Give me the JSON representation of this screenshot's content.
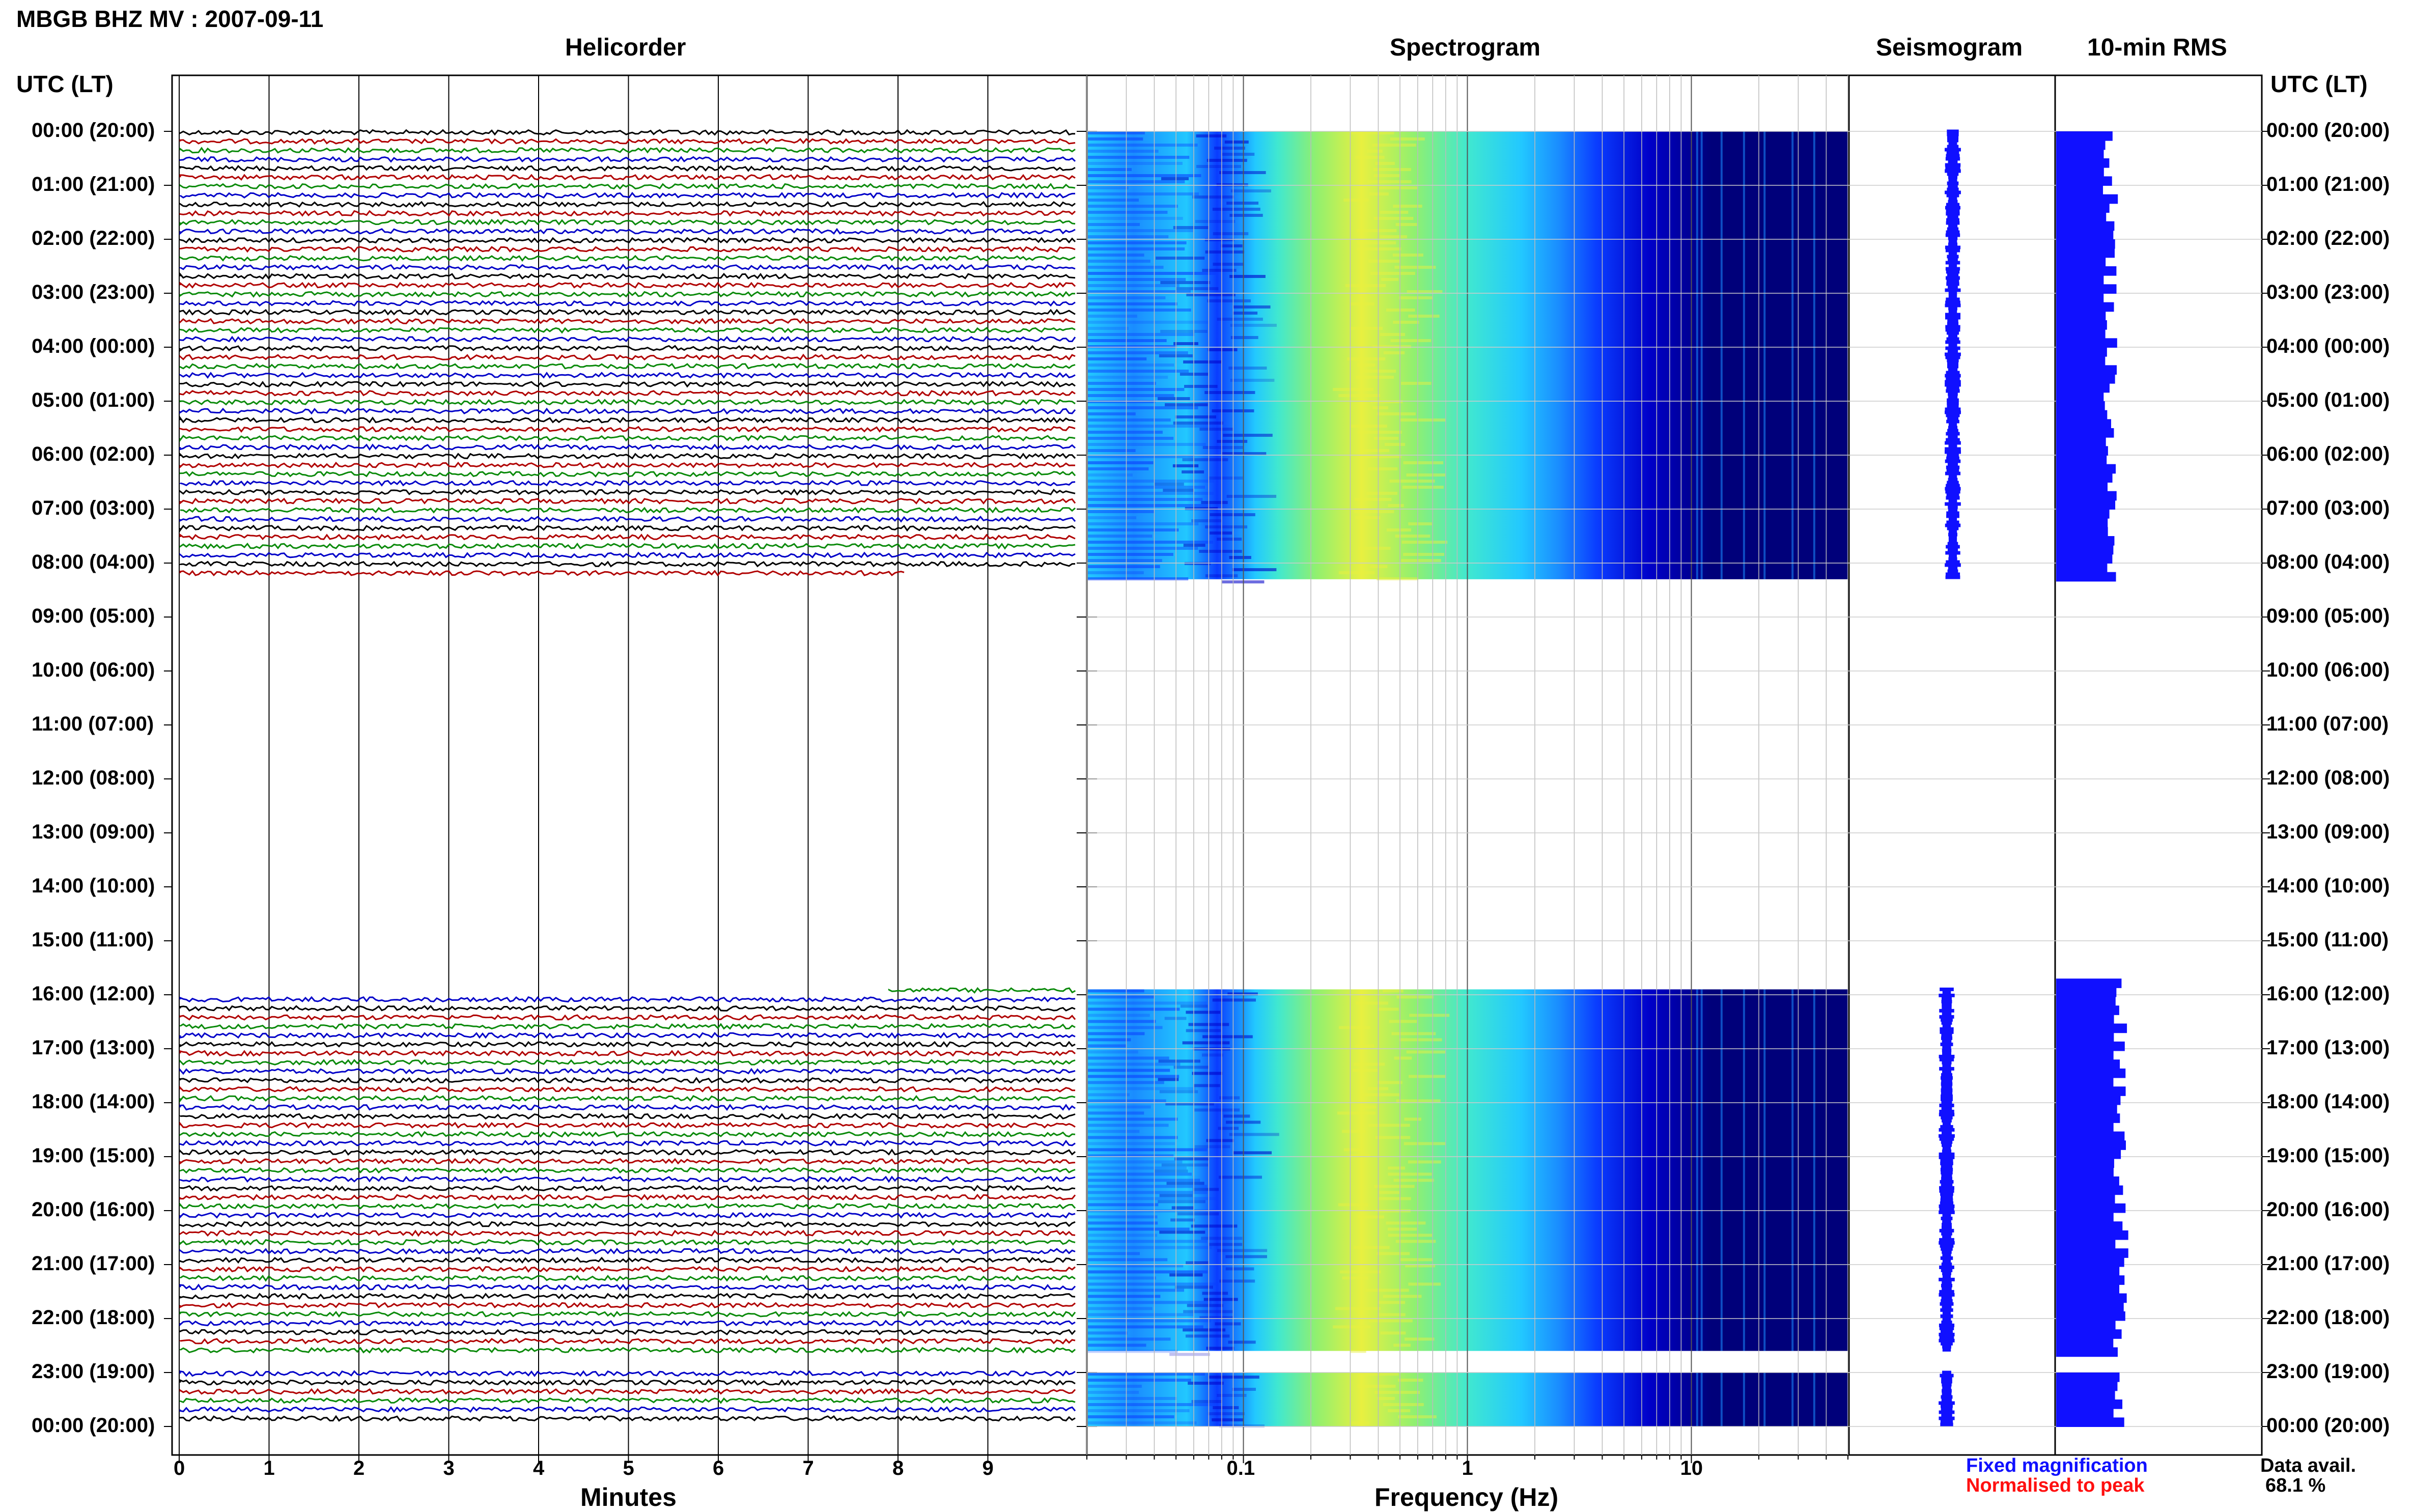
{
  "header": {
    "title": "MBGB BHZ MV : 2007-09-11",
    "utc_label_left": "UTC (LT)",
    "utc_label_right": "UTC (LT)"
  },
  "panels": {
    "helicorder": "Helicorder",
    "spectrogram": "Spectrogram",
    "seismogram": "Seismogram",
    "rms": "10-min RMS"
  },
  "axes": {
    "minutes_label": "Minutes",
    "minutes_ticks": [
      "0",
      "1",
      "2",
      "3",
      "4",
      "5",
      "6",
      "7",
      "8",
      "9"
    ],
    "frequency_label": "Frequency (Hz)",
    "frequency_ticks": [
      "0.1",
      "1",
      "10"
    ]
  },
  "time_labels": [
    "00:00 (20:00)",
    "01:00 (21:00)",
    "02:00 (22:00)",
    "03:00 (23:00)",
    "04:00 (00:00)",
    "05:00 (01:00)",
    "06:00 (02:00)",
    "07:00 (03:00)",
    "08:00 (04:00)",
    "09:00 (05:00)",
    "10:00 (06:00)",
    "11:00 (07:00)",
    "12:00 (08:00)",
    "13:00 (09:00)",
    "14:00 (10:00)",
    "15:00 (11:00)",
    "16:00 (12:00)",
    "17:00 (13:00)",
    "18:00 (14:00)",
    "19:00 (15:00)",
    "20:00 (16:00)",
    "21:00 (17:00)",
    "22:00 (18:00)",
    "23:00 (19:00)",
    "00:00 (20:00)"
  ],
  "legend": {
    "fixed": "Fixed magnification",
    "normalised": "Normalised to peak",
    "fixed_color": "#1010ff",
    "normalised_color": "#ff1010"
  },
  "availability": {
    "label": "Data avail.",
    "value": "68.1 %"
  },
  "chart_data": {
    "type": "heatmap",
    "title": "MBGB BHZ MV : 2007-09-11",
    "helicorder": {
      "x_unit": "minutes",
      "xlim": [
        0,
        10
      ],
      "trace_colors": [
        "#000000",
        "#b00000",
        "#0a8a0a",
        "#0000c8"
      ],
      "data_segments_hours": [
        [
          0.0,
          8.3
        ],
        [
          15.9,
          22.7
        ],
        [
          23.0,
          24.0
        ]
      ]
    },
    "spectrogram": {
      "x_unit": "Hz",
      "x_scale": "log",
      "xlim": [
        0.02,
        50
      ],
      "colormap": [
        "#00007a",
        "#0000c8",
        "#0a3cff",
        "#1a8cff",
        "#22c8ff",
        "#40e8d0",
        "#90f070",
        "#e8f040"
      ],
      "peak_frequency_hz": 0.3,
      "data_segments_hours": [
        [
          0.0,
          8.3
        ],
        [
          15.9,
          22.6
        ],
        [
          23.0,
          24.0
        ]
      ]
    },
    "seismogram": {
      "color": "#1010ff",
      "data_segments_hours": [
        [
          0.0,
          8.3
        ],
        [
          15.9,
          22.6
        ],
        [
          23.0,
          24.0
        ]
      ]
    },
    "rms_10min": {
      "color": "#1010ff",
      "data_segments_hours": [
        [
          0.0,
          8.3
        ],
        [
          15.7,
          22.6
        ],
        [
          23.0,
          24.0
        ]
      ]
    },
    "data_availability_percent": 68.1
  }
}
